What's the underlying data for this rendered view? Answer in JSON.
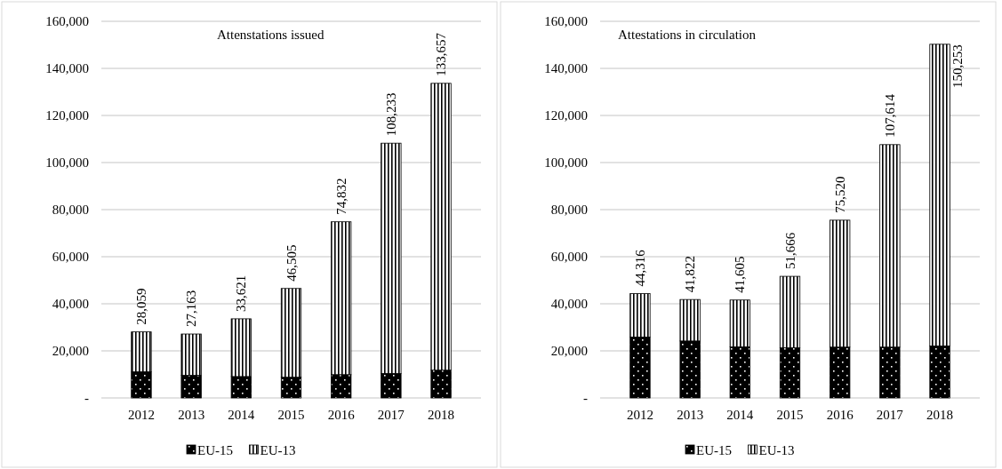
{
  "chart_data": [
    {
      "type": "bar",
      "title": "Attenstations issued",
      "stacked": true,
      "categories": [
        "2012",
        "2013",
        "2014",
        "2015",
        "2016",
        "2017",
        "2018"
      ],
      "series": [
        {
          "name": "EU-15",
          "color": "#000000",
          "values": [
            11100,
            9600,
            9100,
            8800,
            9900,
            10400,
            11800
          ]
        },
        {
          "name": "EU-13",
          "color": "#000000",
          "values": [
            16959,
            17563,
            24521,
            37705,
            64932,
            97833,
            121857
          ]
        }
      ],
      "totals": [
        "28,059",
        "27,163",
        "33,621",
        "46,505",
        "74,832",
        "108,233",
        "133,657"
      ],
      "ylim": [
        0,
        160000
      ],
      "yticks": [
        {
          "value": 0,
          "label": "-"
        },
        {
          "value": 20000,
          "label": "20,000"
        },
        {
          "value": 40000,
          "label": "40,000"
        },
        {
          "value": 60000,
          "label": "60,000"
        },
        {
          "value": 80000,
          "label": "80,000"
        },
        {
          "value": 100000,
          "label": "100,000"
        },
        {
          "value": 120000,
          "label": "120,000"
        },
        {
          "value": 140000,
          "label": "140,000"
        },
        {
          "value": 160000,
          "label": "160,000"
        }
      ],
      "grid": "y",
      "legend": "bottom"
    },
    {
      "type": "bar",
      "title": "Attestations in circulation",
      "stacked": true,
      "categories": [
        "2012",
        "2013",
        "2014",
        "2015",
        "2016",
        "2017",
        "2018"
      ],
      "series": [
        {
          "name": "EU-15",
          "color": "#000000",
          "values": [
            25900,
            24200,
            21700,
            21300,
            21600,
            21600,
            22100
          ]
        },
        {
          "name": "EU-13",
          "color": "#000000",
          "values": [
            18416,
            17622,
            19905,
            30366,
            53920,
            86014,
            128153
          ]
        }
      ],
      "totals": [
        "44,316",
        "41,822",
        "41,605",
        "51,666",
        "75,520",
        "107,614",
        "150,253"
      ],
      "ylim": [
        0,
        160000
      ],
      "yticks": [
        {
          "value": 0,
          "label": "-"
        },
        {
          "value": 20000,
          "label": "20,000"
        },
        {
          "value": 40000,
          "label": "40,000"
        },
        {
          "value": 60000,
          "label": "60,000"
        },
        {
          "value": 80000,
          "label": "80,000"
        },
        {
          "value": 100000,
          "label": "100,000"
        },
        {
          "value": 120000,
          "label": "120,000"
        },
        {
          "value": 140000,
          "label": "140,000"
        },
        {
          "value": 160000,
          "label": "160,000"
        }
      ],
      "grid": "y",
      "legend": "bottom"
    }
  ]
}
